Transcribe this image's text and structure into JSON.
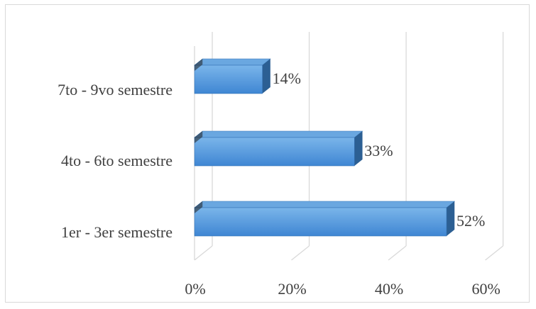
{
  "chart_data": {
    "type": "bar",
    "orientation": "horizontal",
    "style": "3d",
    "categories": [
      "1er - 3er semestre",
      "4to - 6to semestre",
      "7to - 9vo semestre"
    ],
    "values": [
      52,
      33,
      14
    ],
    "data_labels": [
      "52%",
      "33%",
      "14%"
    ],
    "xlim": [
      0,
      60
    ],
    "x_ticks": [
      0,
      20,
      40,
      60
    ],
    "x_tick_labels": [
      "0%",
      "20%",
      "40%",
      "60%"
    ],
    "grid": true,
    "legend": "none",
    "colors": {
      "bar_front": "#4a90d9",
      "bar_front_light": "#7ab5ea",
      "bar_top": "#6aa7e0",
      "bar_side": "#2c5f93",
      "grid": "#d9d9d9",
      "text": "#404040"
    }
  }
}
